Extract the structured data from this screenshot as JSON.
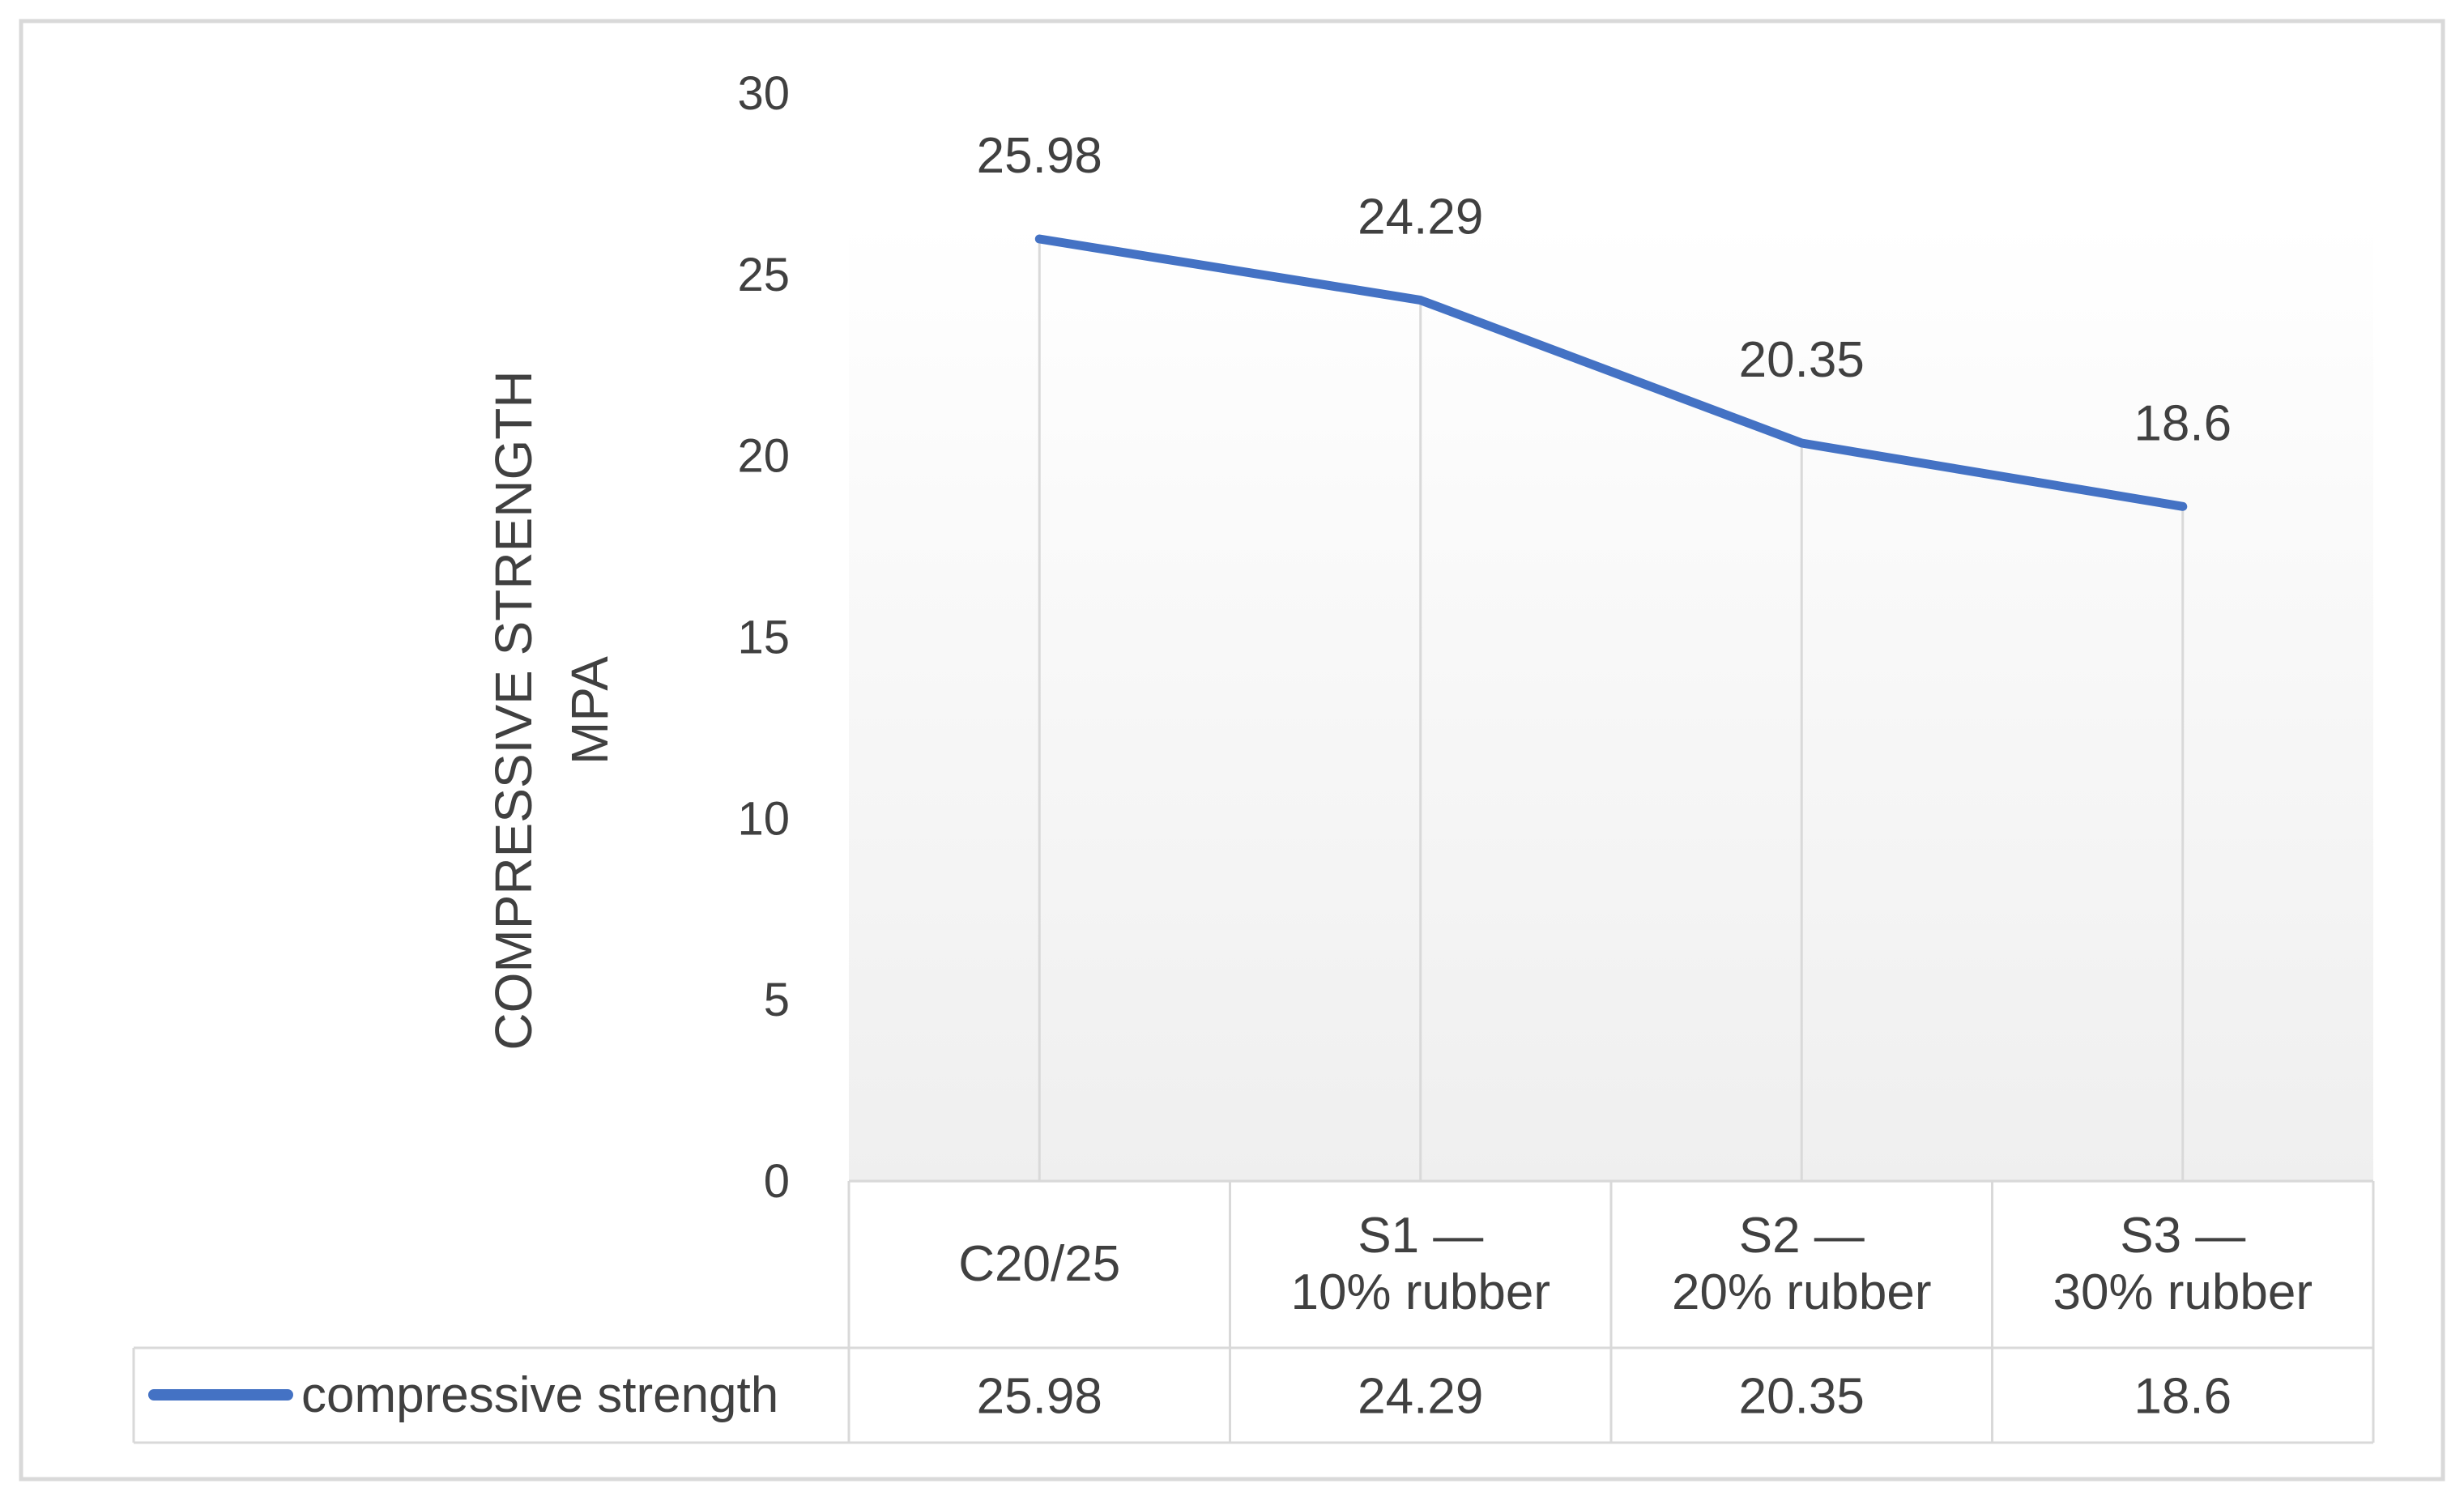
{
  "chart_data": {
    "type": "line",
    "title": "",
    "xlabel": "",
    "ylabel_lines": [
      "COMPRESSIVE STRENGTH",
      "MPA"
    ],
    "categories": [
      [
        "C20/25"
      ],
      [
        "S1 —",
        "10% rubber"
      ],
      [
        "S2 —",
        "20% rubber"
      ],
      [
        "S3 —",
        "30% rubber"
      ]
    ],
    "series": [
      {
        "name": "compressive strength",
        "values": [
          25.98,
          24.29,
          20.35,
          18.6
        ],
        "data_labels": [
          "25.98",
          "24.29",
          "20.35",
          "18.6"
        ],
        "color": "#4472c4"
      }
    ],
    "ylim": [
      0,
      30
    ],
    "yticks": [
      0,
      5,
      10,
      15,
      20,
      25,
      30
    ],
    "grid": "vertical",
    "legend": "data-table-left",
    "data_table": true
  }
}
